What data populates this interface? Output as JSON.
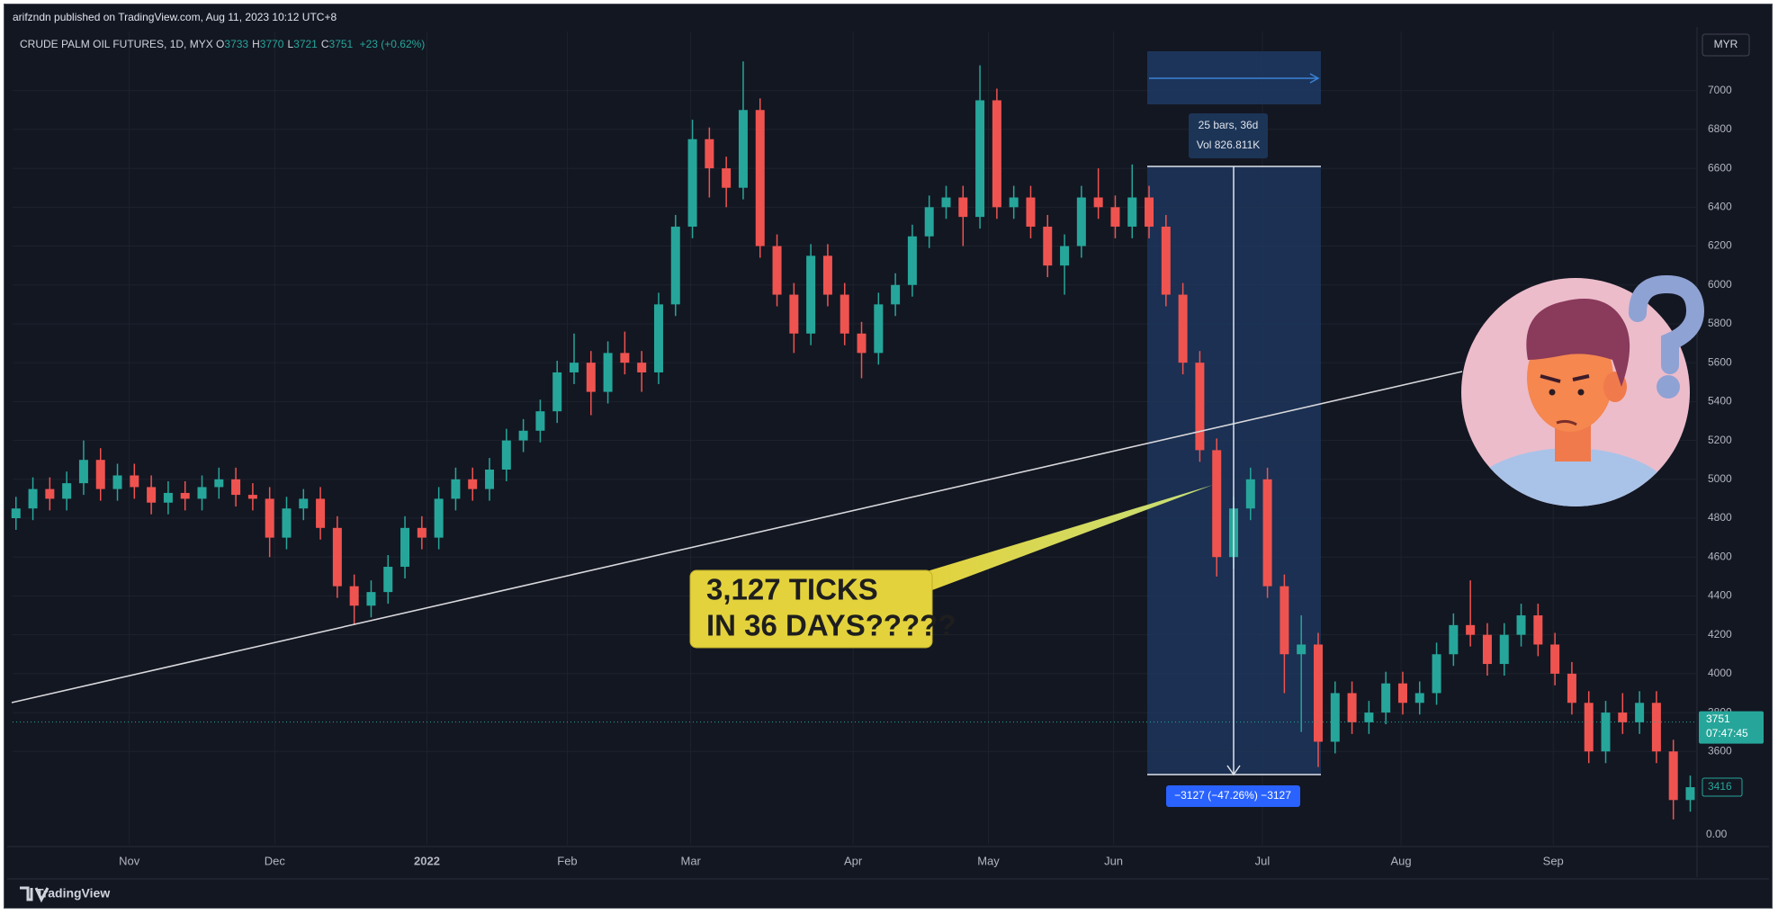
{
  "chart_data": {
    "type": "candlestick",
    "header": "arifzndn published on TradingView.com, Aug 11, 2023 10:12 UTC+8",
    "title": "CRUDE PALM OIL FUTURES, 1D, MYX",
    "ohlc_legend": [
      {
        "key": "O",
        "value": 3733
      },
      {
        "key": "H",
        "value": 3770
      },
      {
        "key": "L",
        "value": 3721
      },
      {
        "key": "C",
        "value": 3751
      }
    ],
    "change_label": "+23 (+0.62%)",
    "currency": "MYR",
    "up_color": "#26a69a",
    "down_color": "#ef5350",
    "open": [
      4800,
      4850,
      4950,
      4900,
      4980,
      5100,
      4950,
      5020,
      4960,
      4880,
      4930,
      4900,
      4960,
      5000,
      4920,
      4900,
      4700,
      4850,
      4900,
      4750,
      4450,
      4350,
      4420,
      4550,
      4750,
      4700,
      4900,
      5000,
      4950,
      5050,
      5200,
      5250,
      5350,
      5550,
      5600,
      5450,
      5650,
      5600,
      5550,
      5900,
      6300,
      6750,
      6600,
      6500,
      6900,
      6200,
      5950,
      5750,
      6150,
      5950,
      5750,
      5650,
      5900,
      6000,
      6250,
      6400,
      6450,
      6350,
      6950,
      6400,
      6450,
      6300,
      6100,
      6200,
      6450,
      6400,
      6300,
      6450,
      6300,
      5950,
      5600,
      5150,
      4600,
      4850,
      5000,
      4450,
      4100,
      4150,
      3650,
      3900,
      3750,
      3800,
      3950,
      3850,
      3900,
      4100,
      4250,
      4200,
      4050,
      4200,
      4300,
      4150,
      4000,
      3850,
      3600,
      3800,
      3750,
      3850,
      3600,
      3350
    ],
    "high": [
      4910,
      5010,
      5010,
      5040,
      5200,
      5160,
      5080,
      5080,
      5020,
      4990,
      4990,
      5020,
      5060,
      5060,
      4980,
      4960,
      4910,
      4950,
      4960,
      4810,
      4510,
      4480,
      4610,
      4810,
      4810,
      4960,
      5060,
      5060,
      5110,
      5260,
      5310,
      5410,
      5610,
      5750,
      5660,
      5710,
      5760,
      5660,
      5960,
      6360,
      6850,
      6810,
      6660,
      7150,
      6960,
      6260,
      6010,
      6210,
      6210,
      6010,
      5810,
      5960,
      6060,
      6310,
      6460,
      6510,
      6510,
      7130,
      7010,
      6510,
      6510,
      6360,
      6260,
      6510,
      6600,
      6460,
      6620,
      6510,
      6360,
      6010,
      5660,
      5210,
      4910,
      5060,
      5060,
      4510,
      4300,
      4210,
      3960,
      3960,
      3860,
      4010,
      4010,
      3960,
      4160,
      4310,
      4480,
      4260,
      4260,
      4360,
      4360,
      4210,
      4060,
      3910,
      3860,
      3900,
      3910,
      3910,
      3660,
      3476
    ],
    "low": [
      4740,
      4790,
      4840,
      4840,
      4920,
      4890,
      4890,
      4900,
      4820,
      4820,
      4840,
      4840,
      4900,
      4860,
      4840,
      4600,
      4640,
      4790,
      4690,
      4390,
      4250,
      4290,
      4360,
      4490,
      4640,
      4640,
      4840,
      4890,
      4890,
      4990,
      5140,
      5190,
      5290,
      5490,
      5330,
      5390,
      5540,
      5450,
      5490,
      5840,
      6240,
      6450,
      6400,
      6440,
      6140,
      5890,
      5650,
      5690,
      5890,
      5690,
      5520,
      5590,
      5840,
      5940,
      6190,
      6340,
      6200,
      6290,
      6340,
      6340,
      6240,
      6040,
      5950,
      6140,
      6340,
      6240,
      6240,
      6240,
      5890,
      5540,
      5090,
      4500,
      4540,
      4790,
      4390,
      3900,
      3700,
      3520,
      3590,
      3690,
      3690,
      3740,
      3790,
      3790,
      3840,
      4040,
      4140,
      3990,
      3990,
      4140,
      4090,
      3940,
      3790,
      3540,
      3540,
      3690,
      3690,
      3540,
      3250,
      3290
    ],
    "close": [
      4850,
      4950,
      4900,
      4980,
      5100,
      4950,
      5020,
      4960,
      4880,
      4930,
      4900,
      4960,
      5000,
      4920,
      4900,
      4700,
      4850,
      4900,
      4750,
      4450,
      4350,
      4420,
      4550,
      4750,
      4700,
      4900,
      5000,
      4950,
      5050,
      5200,
      5250,
      5350,
      5550,
      5600,
      5450,
      5650,
      5600,
      5550,
      5900,
      6300,
      6750,
      6600,
      6500,
      6900,
      6200,
      5950,
      5750,
      6150,
      5950,
      5750,
      5650,
      5900,
      6000,
      6250,
      6400,
      6450,
      6350,
      6950,
      6400,
      6450,
      6300,
      6100,
      6200,
      6450,
      6400,
      6300,
      6450,
      6300,
      5950,
      5600,
      5150,
      4600,
      4850,
      5000,
      4450,
      4100,
      4150,
      3650,
      3900,
      3750,
      3800,
      3950,
      3850,
      3900,
      4100,
      4250,
      4200,
      4050,
      4200,
      4300,
      4150,
      4000,
      3850,
      3600,
      3800,
      3750,
      3850,
      3600,
      3350,
      3416
    ],
    "xlim": [
      -0.2,
      99.4
    ],
    "xticks": [
      {
        "value": 6.7,
        "label": "Nov"
      },
      {
        "value": 15.3,
        "label": "Dec"
      },
      {
        "value": 24.3,
        "label": "2022"
      },
      {
        "value": 32.6,
        "label": "Feb"
      },
      {
        "value": 39.9,
        "label": "Mar"
      },
      {
        "value": 49.5,
        "label": "Apr"
      },
      {
        "value": 57.5,
        "label": "May"
      },
      {
        "value": 64.9,
        "label": "Jun"
      },
      {
        "value": 73.7,
        "label": "Jul"
      },
      {
        "value": 81.9,
        "label": "Aug"
      },
      {
        "value": 90.9,
        "label": "Sep"
      }
    ],
    "ylim": [
      3120,
      7304
    ],
    "yticks": [
      3600,
      3800,
      4000,
      4200,
      4400,
      4600,
      4800,
      5000,
      5200,
      5400,
      5600,
      5800,
      6000,
      6200,
      6400,
      6600,
      6800,
      7000
    ],
    "grid": true,
    "last_price": 3751,
    "countdown": "07:47:45",
    "price_marker": 3416,
    "scale_label": "0.00",
    "measure": {
      "bars_label": "25 bars, 36d",
      "volume_label": "Vol 826.811K",
      "change_label": "−3127 (−47.26%) −3127"
    },
    "callout": [
      "3,127 TICKS",
      "IN 36 DAYS?????"
    ],
    "brand": "TradingView"
  }
}
